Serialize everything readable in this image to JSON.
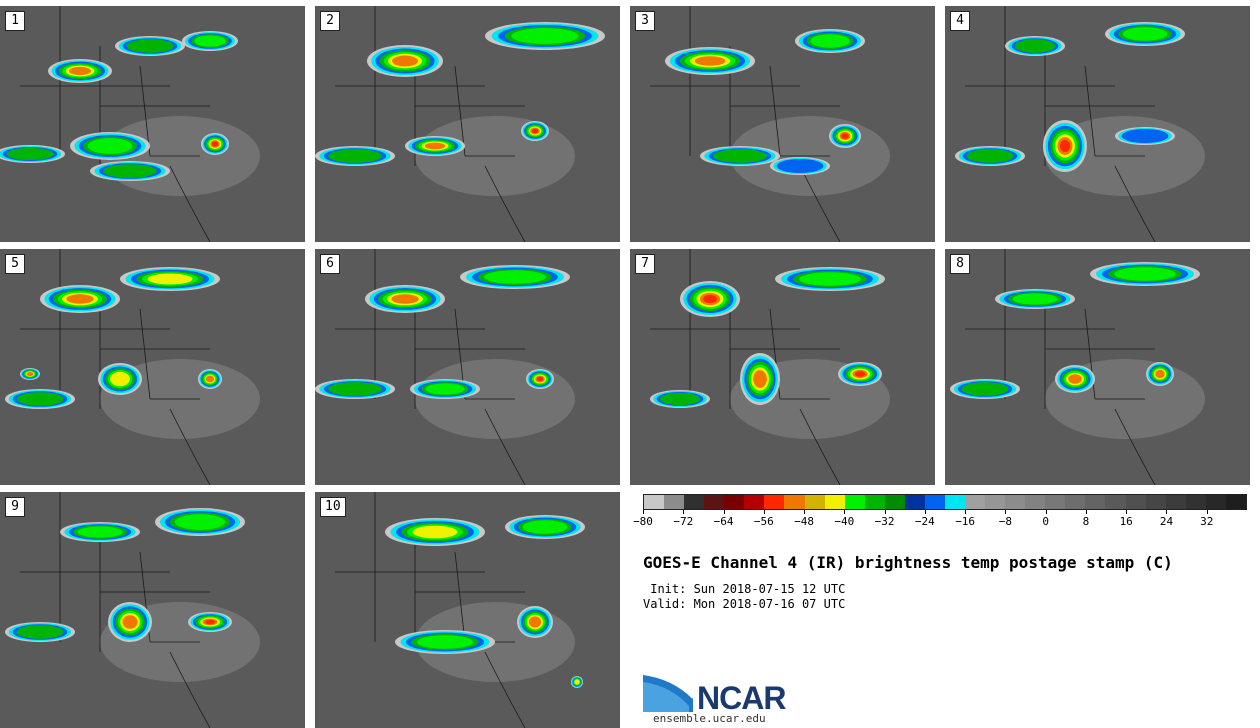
{
  "panels": [
    {
      "label": "1"
    },
    {
      "label": "2"
    },
    {
      "label": "3"
    },
    {
      "label": "4"
    },
    {
      "label": "5"
    },
    {
      "label": "6"
    },
    {
      "label": "7"
    },
    {
      "label": "8"
    },
    {
      "label": "9"
    },
    {
      "label": "10"
    }
  ],
  "colorbar": {
    "colors": [
      "#c8c8c8",
      "#8c8c8c",
      "#303030",
      "#5a1414",
      "#780000",
      "#b40000",
      "#ff2800",
      "#f07800",
      "#d2b400",
      "#f0f000",
      "#00f000",
      "#00b400",
      "#008c00",
      "#0032a0",
      "#0064f0",
      "#00e6f0",
      "#a0a0a0",
      "#969696",
      "#8c8c8c",
      "#828282",
      "#787878",
      "#6e6e6e",
      "#646464",
      "#5a5a5a",
      "#505050",
      "#464646",
      "#3c3c3c",
      "#323232",
      "#282828",
      "#1e1e1e"
    ],
    "tick_labels": [
      "−80",
      "−72",
      "−64",
      "−56",
      "−48",
      "−40",
      "−32",
      "−24",
      "−16",
      "−8",
      "0",
      "8",
      "16",
      "24",
      "32"
    ]
  },
  "title": "GOES-E Channel 4 (IR) brightness temp postage stamp (C)",
  "init": " Init: Sun 2018-07-15 12 UTC",
  "valid": "Valid: Mon 2018-07-16 07 UTC",
  "logo": {
    "text": "NCAR",
    "url_text": "ensemble.ucar.edu"
  }
}
